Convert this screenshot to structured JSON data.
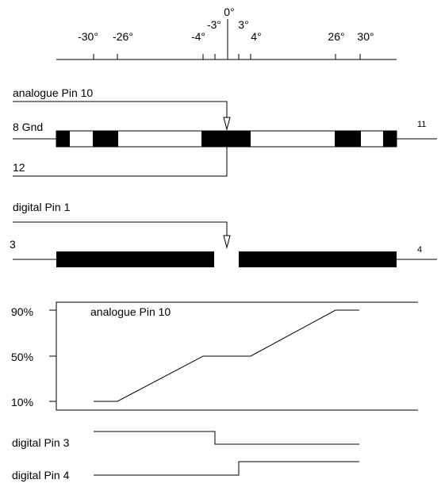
{
  "scale": {
    "ticks": [
      "-30°",
      "-26°",
      "-4°",
      "-3°",
      "0°",
      "3°",
      "4°",
      "26°",
      "30°"
    ]
  },
  "potentiometer": {
    "wiper_label": "analogue Pin 10",
    "left_label": "8 Gnd",
    "right_label": "11",
    "bottom_label": "12"
  },
  "switch": {
    "wiper_label": "digital Pin 1",
    "left_label": "3",
    "right_label": "4"
  },
  "graph": {
    "title": "analogue Pin 10",
    "y_labels": [
      "90%",
      "50%",
      "10%"
    ]
  },
  "digital_signals": [
    {
      "label": "digital Pin 3"
    },
    {
      "label": "digital Pin 4"
    }
  ]
}
